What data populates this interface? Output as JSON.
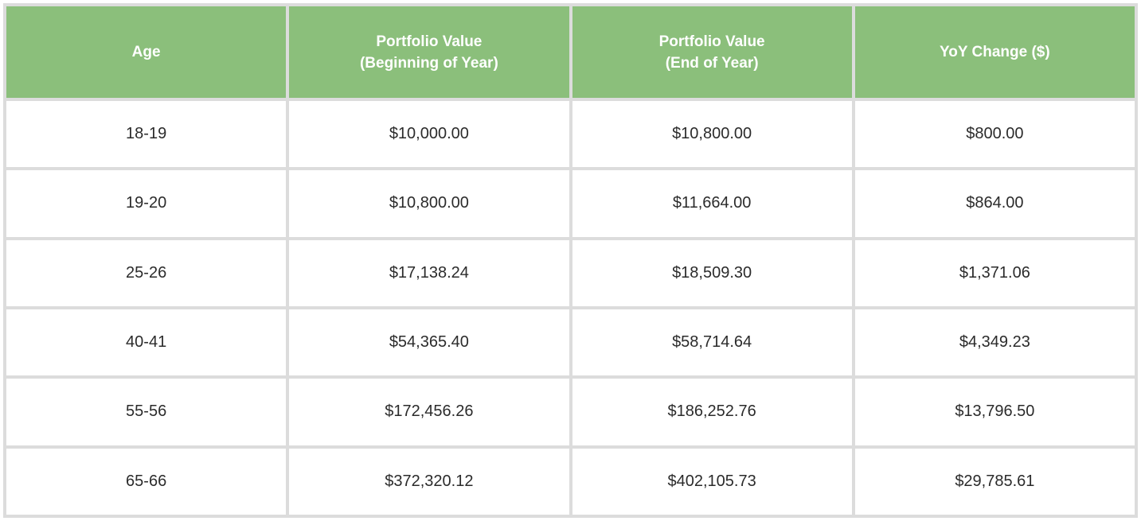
{
  "table": {
    "headers": [
      "Age",
      "Portfolio Value\n(Beginning of Year)",
      "Portfolio Value\n(End of Year)",
      "YoY Change ($)"
    ],
    "rows": [
      [
        "18-19",
        "$10,000.00",
        "$10,800.00",
        "$800.00"
      ],
      [
        "19-20",
        "$10,800.00",
        "$11,664.00",
        "$864.00"
      ],
      [
        "25-26",
        "$17,138.24",
        "$18,509.30",
        "$1,371.06"
      ],
      [
        "40-41",
        "$54,365.40",
        "$58,714.64",
        "$4,349.23"
      ],
      [
        "55-56",
        "$172,456.26",
        "$186,252.76",
        "$13,796.50"
      ],
      [
        "65-66",
        "$372,320.12",
        "$402,105.73",
        "$29,785.61"
      ]
    ]
  },
  "colors": {
    "header_background": "#8bbf7b",
    "header_text": "#ffffff",
    "grid_lines": "#dcdcdc",
    "cell_text": "#2b2b2b"
  }
}
